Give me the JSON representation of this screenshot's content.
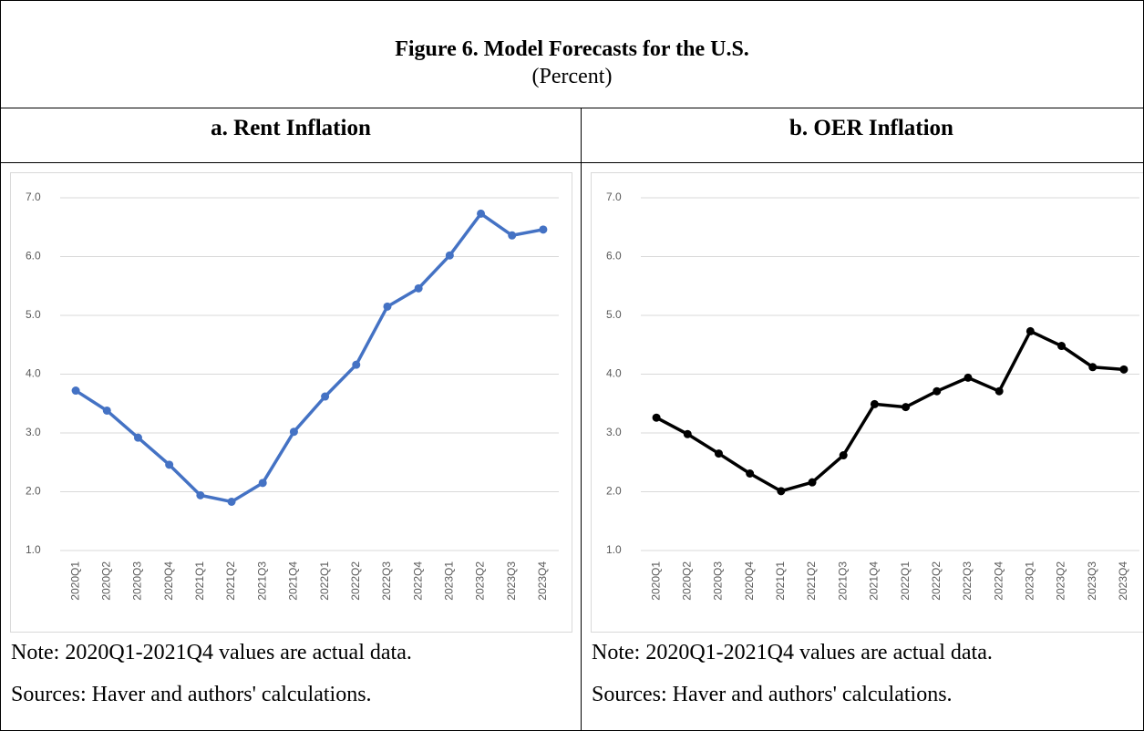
{
  "header": {
    "title": "Figure 6. Model Forecasts for the U.S.",
    "subtitle": "(Percent)"
  },
  "chart_data": [
    {
      "type": "line",
      "title": "a. Rent Inflation",
      "categories": [
        "2020Q1",
        "2020Q2",
        "2020Q3",
        "2020Q4",
        "2021Q1",
        "2021Q2",
        "2021Q3",
        "2021Q4",
        "2022Q1",
        "2022Q2",
        "2022Q3",
        "2022Q4",
        "2023Q1",
        "2023Q2",
        "2023Q3",
        "2023Q4"
      ],
      "values": [
        3.72,
        3.38,
        2.92,
        2.46,
        1.94,
        1.83,
        2.15,
        3.02,
        3.62,
        4.16,
        5.15,
        5.46,
        6.02,
        6.73,
        6.36,
        6.46
      ],
      "color": "#4472c4",
      "ylim": [
        1,
        7
      ],
      "yticks": [
        {
          "value": 1,
          "label": "1.0"
        },
        {
          "value": 2,
          "label": "2.0"
        },
        {
          "value": 3,
          "label": "3.0"
        },
        {
          "value": 4,
          "label": "4.0"
        },
        {
          "value": 5,
          "label": "5.0"
        },
        {
          "value": 6,
          "label": "6.0"
        },
        {
          "value": 7,
          "label": "7.0"
        }
      ],
      "grid": true,
      "note": "Note: 2020Q1-2021Q4 values are actual data.",
      "source": "Sources: Haver and authors' calculations."
    },
    {
      "type": "line",
      "title": "b. OER Inflation",
      "categories": [
        "2020Q1",
        "2020Q2",
        "2020Q3",
        "2020Q4",
        "2021Q1",
        "2021Q2",
        "2021Q3",
        "2021Q4",
        "2022Q1",
        "2022Q2",
        "2022Q3",
        "2022Q4",
        "2023Q1",
        "2023Q2",
        "2023Q3",
        "2023Q4"
      ],
      "values": [
        3.26,
        2.98,
        2.65,
        2.31,
        2.01,
        2.16,
        2.62,
        3.49,
        3.44,
        3.71,
        3.94,
        3.71,
        4.73,
        4.48,
        4.12,
        4.08
      ],
      "color": "#000000",
      "ylim": [
        1,
        7
      ],
      "yticks": [
        {
          "value": 1,
          "label": "1.0"
        },
        {
          "value": 2,
          "label": "2.0"
        },
        {
          "value": 3,
          "label": "3.0"
        },
        {
          "value": 4,
          "label": "4.0"
        },
        {
          "value": 5,
          "label": "5.0"
        },
        {
          "value": 6,
          "label": "6.0"
        },
        {
          "value": 7,
          "label": "7.0"
        }
      ],
      "grid": true,
      "note": "Note: 2020Q1-2021Q4 values are actual data.",
      "source": "Sources: Haver and authors' calculations."
    }
  ]
}
